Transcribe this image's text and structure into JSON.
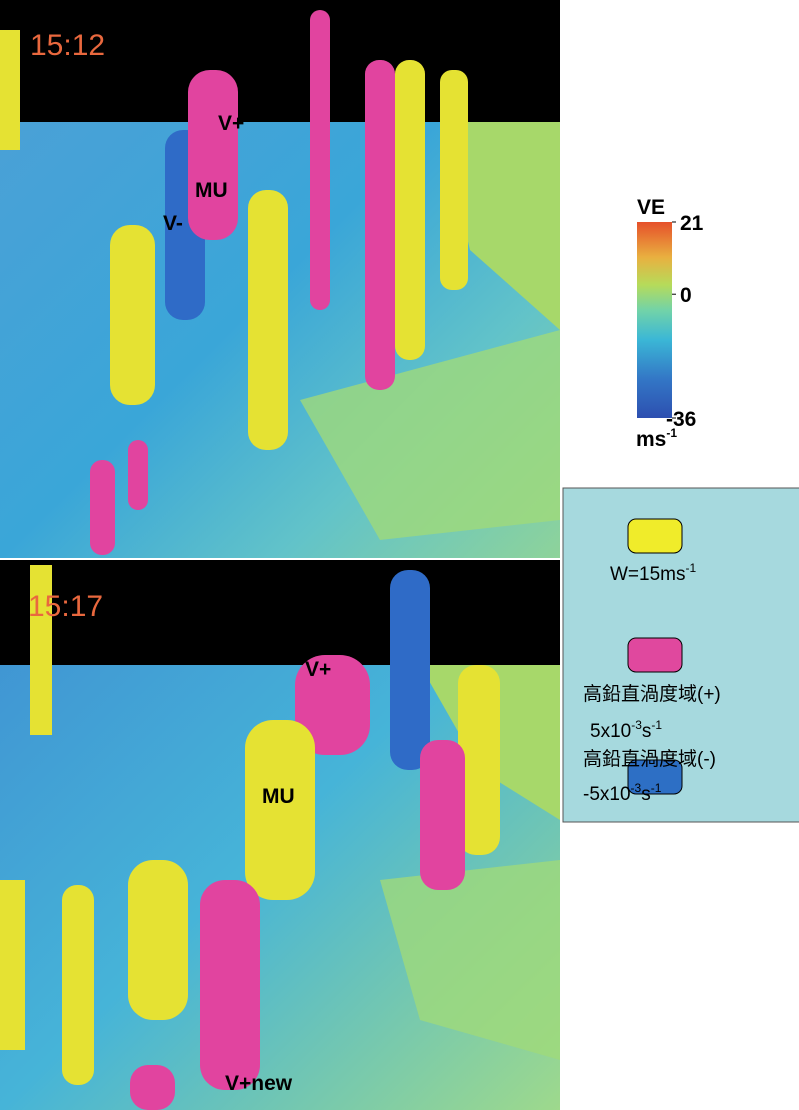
{
  "panels": [
    {
      "time": "15:12",
      "labels": [
        "V+",
        "MU",
        "V-"
      ]
    },
    {
      "time": "15:17",
      "labels": [
        "V+",
        "MU",
        "V+new"
      ]
    }
  ],
  "colorbar": {
    "title": "VE",
    "lim": [
      -36,
      21
    ],
    "ticks": [
      21,
      0,
      -36
    ],
    "unit": {
      "base": "ms",
      "sup": "-1"
    }
  },
  "legend": [
    {
      "lines": [
        {
          "base": "W=15ms",
          "sup": "-1"
        }
      ]
    },
    {
      "lines": [
        {
          "base": "高鉛直渦度域(+)",
          "sup": ""
        },
        {
          "base": "5x10",
          "sup": "-3",
          "base2": "s",
          "sup2": "-1"
        }
      ]
    },
    {
      "lines": [
        {
          "base": "高鉛直渦度域(-)",
          "sup": ""
        },
        {
          "base": "-5x10",
          "sup": "-3",
          "base2": "s",
          "sup2": "-1"
        }
      ]
    }
  ]
}
